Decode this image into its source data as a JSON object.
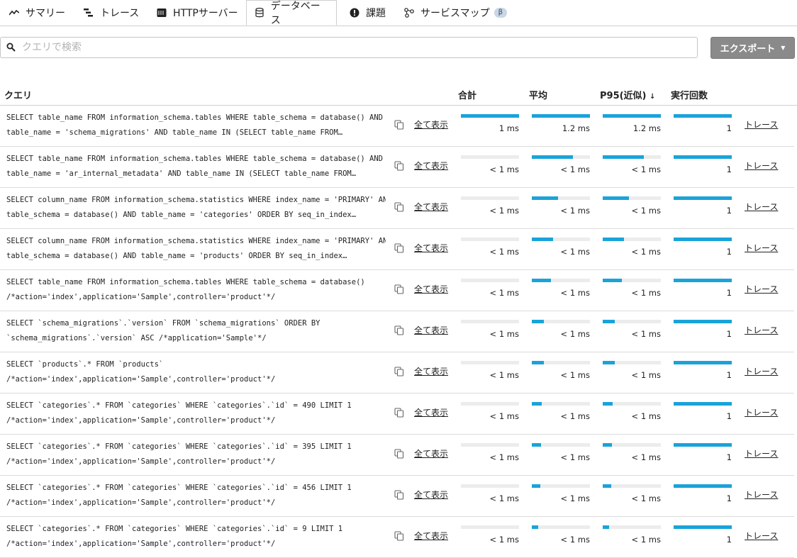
{
  "tabs": [
    {
      "label": "サマリー",
      "icon": "summary-icon"
    },
    {
      "label": "トレース",
      "icon": "trace-icon"
    },
    {
      "label": "HTTPサーバー",
      "icon": "server-icon"
    },
    {
      "label": "データベース",
      "icon": "database-icon",
      "active": true
    },
    {
      "label": "課題",
      "icon": "alert-icon"
    },
    {
      "label": "サービスマップ",
      "icon": "service-map-icon",
      "badge": "β"
    }
  ],
  "search": {
    "placeholder": "クエリで検索",
    "value": ""
  },
  "export": {
    "label": "エクスポート"
  },
  "table": {
    "headers": {
      "query": "クエリ",
      "total": "合計",
      "avg": "平均",
      "p95": "P95(近似)",
      "count": "実行回数"
    },
    "show_all_label": "全て表示",
    "trace_label": "トレース",
    "bar_color": "#1aa3d9",
    "rows": [
      {
        "sql": "SELECT table_name FROM information_schema.tables WHERE table_schema = database() AND\ntable_name = 'schema_migrations' AND table_name IN (SELECT table_name FROM…",
        "total": "1 ms",
        "avg": "1.2 ms",
        "p95": "1.2 ms",
        "count": "1",
        "total_frac": 1.0,
        "avg_frac": 1.0,
        "p95_frac": 1.0,
        "count_frac": 1.0
      },
      {
        "sql": "SELECT table_name FROM information_schema.tables WHERE table_schema = database() AND\ntable_name = 'ar_internal_metadata' AND table_name IN (SELECT table_name FROM…",
        "total": "< 1 ms",
        "avg": "< 1 ms",
        "p95": "< 1 ms",
        "count": "1",
        "total_frac": 0.0,
        "avg_frac": 0.71,
        "p95_frac": 0.71,
        "count_frac": 1.0
      },
      {
        "sql": "SELECT column_name FROM information_schema.statistics WHERE index_name = 'PRIMARY' AND\ntable_schema = database() AND table_name = 'categories' ORDER BY seq_in_index…",
        "total": "< 1 ms",
        "avg": "< 1 ms",
        "p95": "< 1 ms",
        "count": "1",
        "total_frac": 0.0,
        "avg_frac": 0.45,
        "p95_frac": 0.45,
        "count_frac": 1.0
      },
      {
        "sql": "SELECT column_name FROM information_schema.statistics WHERE index_name = 'PRIMARY' AND\ntable_schema = database() AND table_name = 'products' ORDER BY seq_in_index…",
        "total": "< 1 ms",
        "avg": "< 1 ms",
        "p95": "< 1 ms",
        "count": "1",
        "total_frac": 0.0,
        "avg_frac": 0.36,
        "p95_frac": 0.36,
        "count_frac": 1.0
      },
      {
        "sql": "SELECT table_name FROM information_schema.tables WHERE table_schema = database()\n/*action='index',application='Sample',controller='product'*/",
        "total": "< 1 ms",
        "avg": "< 1 ms",
        "p95": "< 1 ms",
        "count": "1",
        "total_frac": 0.0,
        "avg_frac": 0.33,
        "p95_frac": 0.33,
        "count_frac": 1.0
      },
      {
        "sql": "SELECT `schema_migrations`.`version` FROM `schema_migrations` ORDER BY\n`schema_migrations`.`version` ASC /*application='Sample'*/",
        "total": "< 1 ms",
        "avg": "< 1 ms",
        "p95": "< 1 ms",
        "count": "1",
        "total_frac": 0.0,
        "avg_frac": 0.21,
        "p95_frac": 0.21,
        "count_frac": 1.0
      },
      {
        "sql": "SELECT `products`.* FROM `products`\n/*action='index',application='Sample',controller='product'*/",
        "total": "< 1 ms",
        "avg": "< 1 ms",
        "p95": "< 1 ms",
        "count": "1",
        "total_frac": 0.0,
        "avg_frac": 0.21,
        "p95_frac": 0.21,
        "count_frac": 1.0
      },
      {
        "sql": "SELECT `categories`.* FROM `categories` WHERE `categories`.`id` = 490 LIMIT 1\n/*action='index',application='Sample',controller='product'*/",
        "total": "< 1 ms",
        "avg": "< 1 ms",
        "p95": "< 1 ms",
        "count": "1",
        "total_frac": 0.0,
        "avg_frac": 0.17,
        "p95_frac": 0.17,
        "count_frac": 1.0
      },
      {
        "sql": "SELECT `categories`.* FROM `categories` WHERE `categories`.`id` = 395 LIMIT 1\n/*action='index',application='Sample',controller='product'*/",
        "total": "< 1 ms",
        "avg": "< 1 ms",
        "p95": "< 1 ms",
        "count": "1",
        "total_frac": 0.0,
        "avg_frac": 0.16,
        "p95_frac": 0.16,
        "count_frac": 1.0
      },
      {
        "sql": "SELECT `categories`.* FROM `categories` WHERE `categories`.`id` = 456 LIMIT 1\n/*action='index',application='Sample',controller='product'*/",
        "total": "< 1 ms",
        "avg": "< 1 ms",
        "p95": "< 1 ms",
        "count": "1",
        "total_frac": 0.0,
        "avg_frac": 0.14,
        "p95_frac": 0.14,
        "count_frac": 1.0
      },
      {
        "sql": "SELECT `categories`.* FROM `categories` WHERE `categories`.`id` = 9 LIMIT 1\n/*action='index',application='Sample',controller='product'*/",
        "total": "< 1 ms",
        "avg": "< 1 ms",
        "p95": "< 1 ms",
        "count": "1",
        "total_frac": 0.0,
        "avg_frac": 0.11,
        "p95_frac": 0.11,
        "count_frac": 1.0
      }
    ]
  }
}
